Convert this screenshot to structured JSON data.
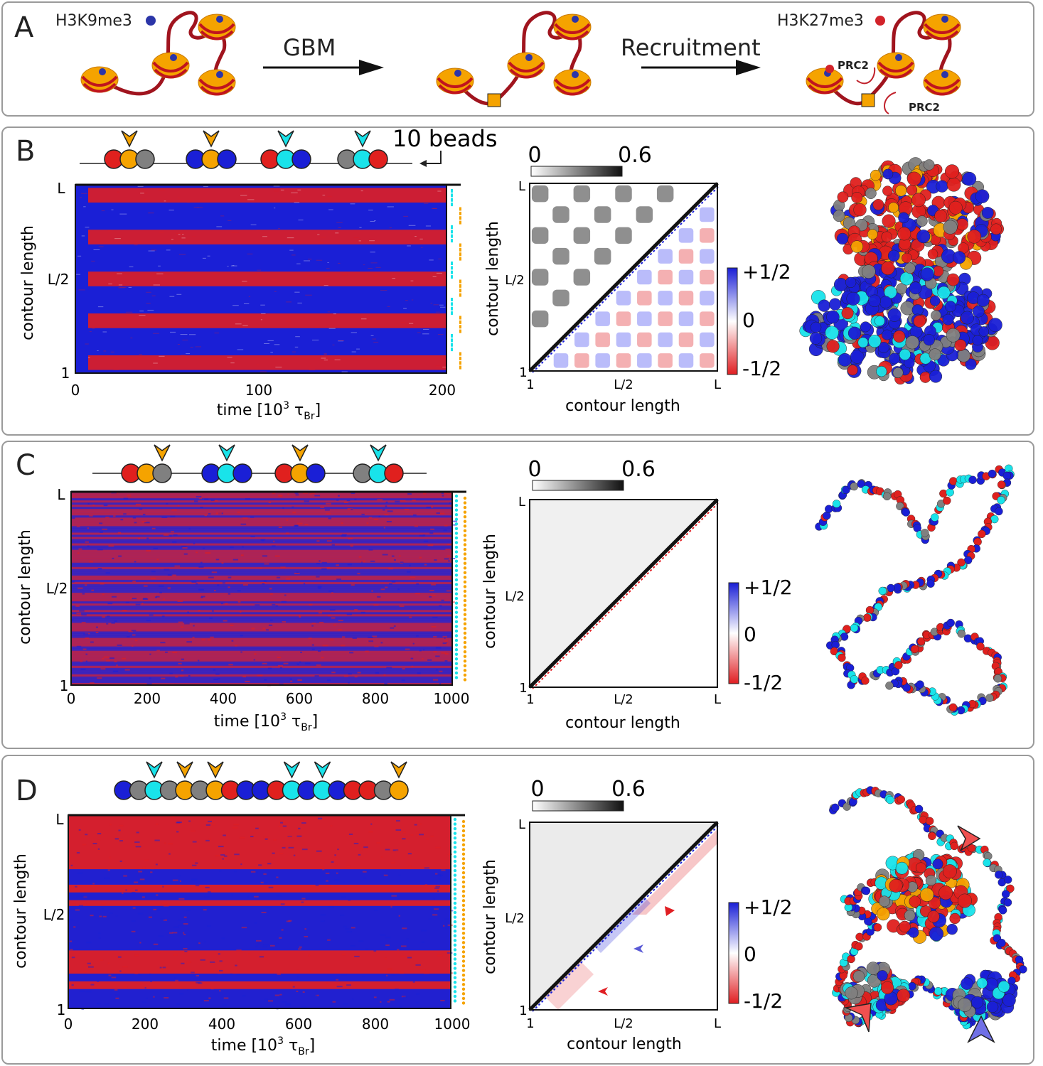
{
  "panelA": {
    "letter": "A",
    "mark1_label": "H3K9me3",
    "mark2_label": "H3K27me3",
    "arrow1_label": "GBM",
    "arrow2_label": "Recruitment",
    "prc2_label": "PRC2"
  },
  "panelB": {
    "letter": "B",
    "beads_note": "10 beads",
    "kymo": {
      "ylabel": "contour length",
      "yticks": [
        "L",
        "L/2",
        "1"
      ],
      "xticks": [
        "0",
        "100",
        "200"
      ],
      "xlabel_main": "time [10",
      "xlabel_sup": "3",
      "xlabel_tau": " τ",
      "xlabel_sub": "Br",
      "xlabel_end": "]"
    },
    "map": {
      "ylabel": "contour length",
      "xlabel": "contour length",
      "yticks": [
        "L",
        "L/2",
        "1"
      ],
      "xticks": [
        "1",
        "L/2",
        "L"
      ],
      "gray_min": "0",
      "gray_max": "0.6",
      "cb_max": "+1/2",
      "cb_mid": "0",
      "cb_min": "-1/2"
    }
  },
  "panelC": {
    "letter": "C",
    "kymo": {
      "ylabel": "contour length",
      "yticks": [
        "L",
        "L/2",
        "1"
      ],
      "xticks": [
        "0",
        "200",
        "400",
        "600",
        "800",
        "1000"
      ],
      "xlabel_main": "time [10",
      "xlabel_sup": "3",
      "xlabel_tau": " τ",
      "xlabel_sub": "Br",
      "xlabel_end": "]"
    },
    "map": {
      "ylabel": "contour length",
      "xlabel": "contour length",
      "yticks": [
        "L",
        "L/2",
        "1"
      ],
      "xticks": [
        "1",
        "L/2",
        "L"
      ],
      "gray_min": "0",
      "gray_max": "0.6",
      "cb_max": "+1/2",
      "cb_mid": "0",
      "cb_min": "-1/2"
    }
  },
  "panelD": {
    "letter": "D",
    "kymo": {
      "ylabel": "contour length",
      "yticks": [
        "L",
        "L/2",
        "1"
      ],
      "xticks": [
        "0",
        "200",
        "400",
        "600",
        "800",
        "1000"
      ],
      "xlabel_main": "time [10",
      "xlabel_sup": "3",
      "xlabel_tau": " τ",
      "xlabel_sub": "Br",
      "xlabel_end": "]"
    },
    "map": {
      "ylabel": "contour length",
      "xlabel": "contour length",
      "yticks": [
        "L",
        "L/2",
        "1"
      ],
      "xticks": [
        "1",
        "L/2",
        "L"
      ],
      "gray_min": "0",
      "gray_max": "0.6",
      "cb_max": "+1/2",
      "cb_mid": "0",
      "cb_min": "-1/2"
    }
  },
  "colors": {
    "red": "#e0201e",
    "blue": "#1a1fd6",
    "cyan": "#19e3ea",
    "orange": "#f5a300",
    "gray": "#808080",
    "dark_red": "#a0141e"
  },
  "bead_patterns": {
    "B": [
      [
        "red",
        "orange",
        "gray"
      ],
      [
        "blue",
        "orange",
        "blue"
      ],
      [
        "red",
        "cyan",
        "blue"
      ],
      [
        "gray",
        "cyan",
        "red"
      ]
    ],
    "C": [
      [
        "red",
        "orange",
        "gray"
      ],
      [
        "blue",
        "cyan",
        "blue"
      ],
      [
        "red",
        "orange",
        "blue"
      ],
      [
        "gray",
        "cyan",
        "red"
      ]
    ],
    "D": [
      "blue",
      "gray",
      "cyan",
      "gray",
      "orange",
      "gray",
      "orange",
      "red",
      "blue",
      "blue",
      "red",
      "cyan",
      "blue",
      "cyan",
      "blue",
      "red",
      "red",
      "gray",
      "orange"
    ]
  }
}
